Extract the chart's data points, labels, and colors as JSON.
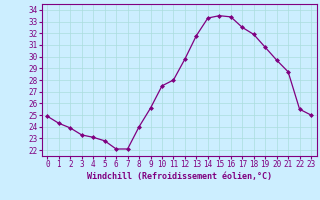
{
  "x": [
    0,
    1,
    2,
    3,
    4,
    5,
    6,
    7,
    8,
    9,
    10,
    11,
    12,
    13,
    14,
    15,
    16,
    17,
    18,
    19,
    20,
    21,
    22,
    23
  ],
  "y": [
    24.9,
    24.3,
    23.9,
    23.3,
    23.1,
    22.8,
    22.1,
    22.1,
    24.0,
    25.6,
    27.5,
    28.0,
    29.8,
    31.8,
    33.3,
    33.5,
    33.4,
    32.5,
    31.9,
    30.8,
    29.7,
    28.7,
    25.5,
    25.0
  ],
  "line_color": "#800080",
  "marker": "D",
  "marker_size": 2.0,
  "bg_color": "#cceeff",
  "grid_color": "#aadddd",
  "xlabel": "Windchill (Refroidissement éolien,°C)",
  "xlabel_color": "#800080",
  "tick_color": "#800080",
  "ylabel_ticks": [
    22,
    23,
    24,
    25,
    26,
    27,
    28,
    29,
    30,
    31,
    32,
    33,
    34
  ],
  "xlim": [
    -0.5,
    23.5
  ],
  "ylim": [
    21.5,
    34.5
  ],
  "spine_color": "#800080",
  "tick_fontsize": 5.5,
  "xlabel_fontsize": 6.0
}
